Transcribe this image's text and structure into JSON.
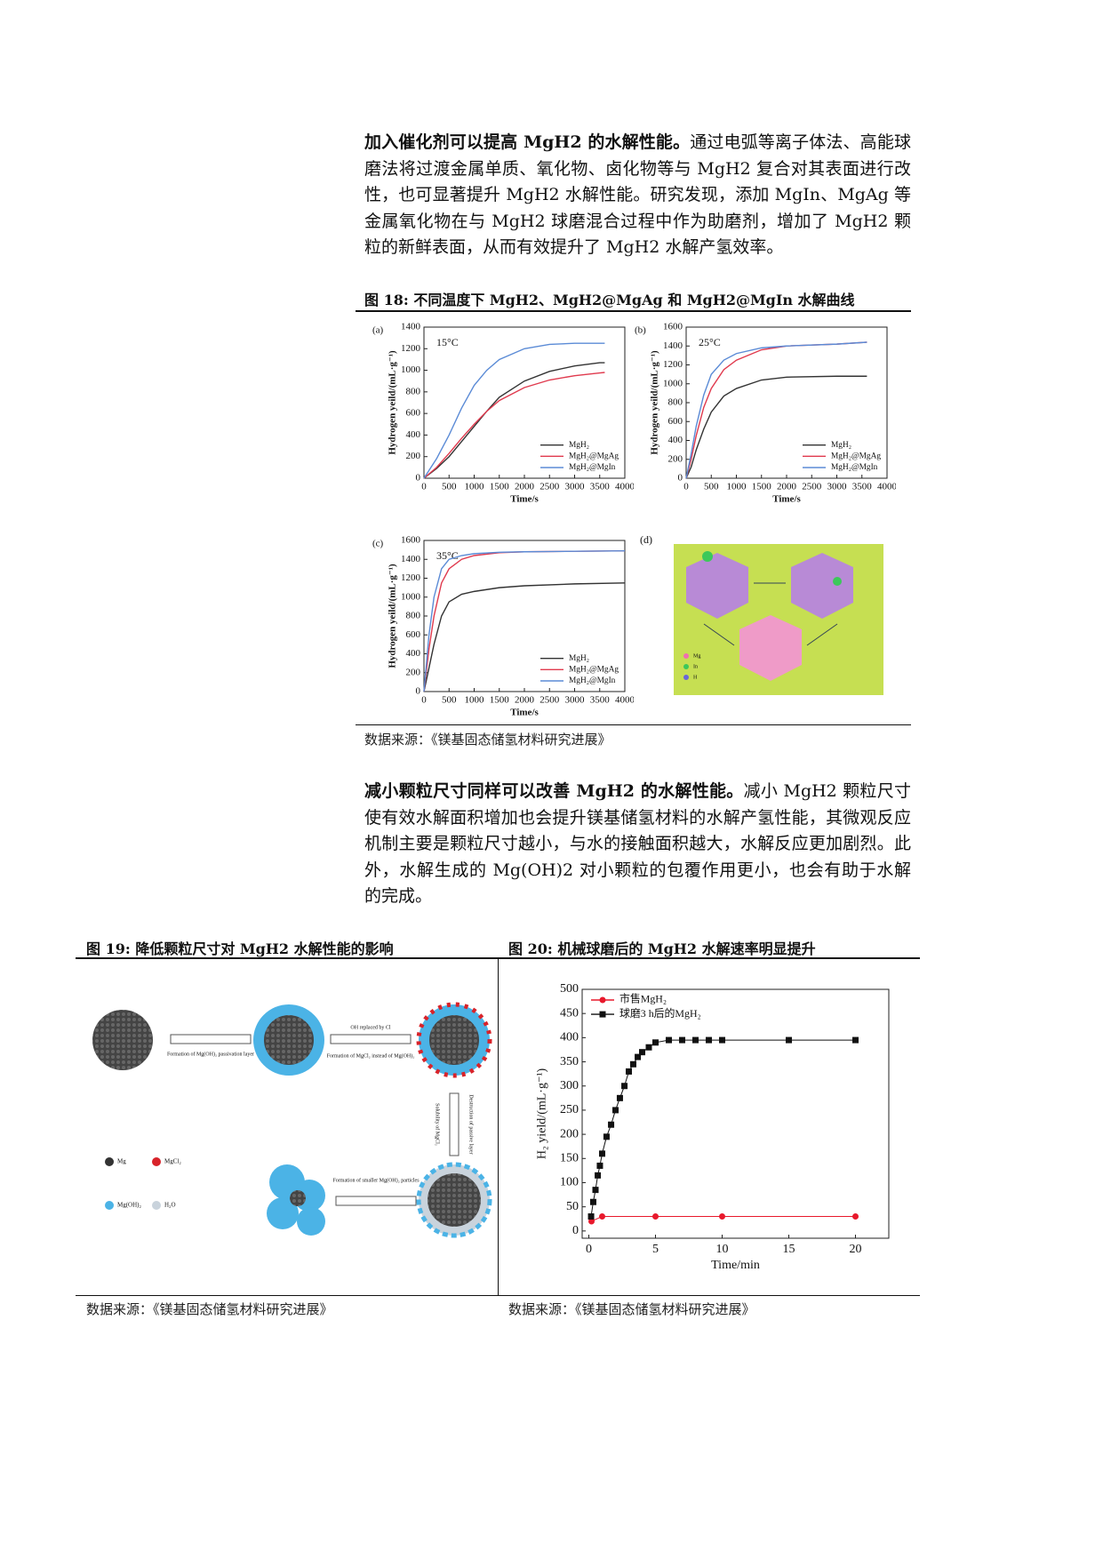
{
  "paragraphs": [
    {
      "lead": "加入催化剂可以提高 MgH2 的水解性能。",
      "text": "通过电弧等离子体法、高能球磨法将过渡金属单质、氧化物、卤化物等与 MgH2 复合对其表面进行改性，也可显著提升 MgH2 水解性能。研究发现，添加 MgIn、MgAg 等金属氧化物在与 MgH2 球磨混合过程中作为助磨剂，增加了 MgH2 颗粒的新鲜表面，从而有效提升了 MgH2 水解产氢效率。"
    },
    {
      "lead": "减小颗粒尺寸同样可以改善 MgH2 的水解性能。",
      "text": "减小 MgH2 颗粒尺寸使有效水解面积增加也会提升镁基储氢材料的水解产氢性能，其微观反应机制主要是颗粒尺寸越小，与水的接触面积越大，水解反应更加剧烈。此外，水解生成的 Mg(OH)2 对小颗粒的包覆作用更小，也会有助于水解的完成。"
    }
  ],
  "figure18": {
    "caption": "图 18: 不同温度下 MgH2、MgH2@MgAg 和 MgH2@MgIn 水解曲线",
    "panels": [
      {
        "type": "line",
        "label": "(a)",
        "annotation": "15°C",
        "x_label": "Time/s",
        "y_label": "Hydrogen yeild/(mL·g⁻¹)",
        "xlim": [
          0,
          4000
        ],
        "ylim": [
          0,
          1400
        ],
        "xticks": [
          0,
          500,
          1000,
          1500,
          2000,
          2500,
          3000,
          3500,
          4000
        ],
        "yticks": [
          0,
          200,
          400,
          600,
          800,
          1000,
          1200,
          1400
        ],
        "legend": "lower right",
        "series": [
          {
            "name": "MgH₂",
            "color": "#333333",
            "x": [
              0,
              250,
              500,
              750,
              1000,
              1250,
              1500,
              2000,
              2500,
              3000,
              3500,
              3600
            ],
            "values": [
              0,
              90,
              200,
              340,
              480,
              620,
              750,
              900,
              990,
              1040,
              1070,
              1070
            ]
          },
          {
            "name": "MgH₂@MgAg",
            "color": "#e03a4e",
            "x": [
              0,
              250,
              500,
              750,
              1000,
              1250,
              1500,
              2000,
              2500,
              3000,
              3500,
              3600
            ],
            "values": [
              0,
              100,
              230,
              370,
              500,
              620,
              720,
              840,
              910,
              950,
              975,
              980
            ]
          },
          {
            "name": "MgH₂@MgIn",
            "color": "#5b8bd6",
            "x": [
              0,
              250,
              500,
              750,
              1000,
              1250,
              1500,
              2000,
              2500,
              3000,
              3500,
              3600
            ],
            "values": [
              0,
              180,
              400,
              650,
              860,
              1000,
              1100,
              1200,
              1240,
              1250,
              1250,
              1250
            ]
          }
        ]
      },
      {
        "type": "line",
        "label": "(b)",
        "annotation": "25°C",
        "x_label": "Time/s",
        "y_label": "Hydrogen yeild/(mL·g⁻¹)",
        "xlim": [
          0,
          4000
        ],
        "ylim": [
          0,
          1600
        ],
        "xticks": [
          0,
          500,
          1000,
          1500,
          2000,
          2500,
          3000,
          3500,
          4000
        ],
        "yticks": [
          0,
          200,
          400,
          600,
          800,
          1000,
          1200,
          1400,
          1600
        ],
        "legend": "lower right",
        "series": [
          {
            "name": "MgH₂",
            "color": "#333333",
            "x": [
              0,
              100,
              200,
              350,
              500,
              750,
              1000,
              1500,
              2000,
              3000,
              3600
            ],
            "values": [
              0,
              120,
              300,
              520,
              700,
              870,
              950,
              1040,
              1070,
              1080,
              1080
            ]
          },
          {
            "name": "MgH₂@MgAg",
            "color": "#e03a4e",
            "x": [
              0,
              100,
              200,
              350,
              500,
              750,
              1000,
              1500,
              2000,
              3000,
              3600
            ],
            "values": [
              0,
              200,
              450,
              750,
              950,
              1150,
              1250,
              1360,
              1400,
              1420,
              1440
            ]
          },
          {
            "name": "MgH₂@MgIn",
            "color": "#5b8bd6",
            "x": [
              0,
              100,
              200,
              350,
              500,
              750,
              1000,
              1500,
              2000,
              3000,
              3600
            ],
            "values": [
              0,
              260,
              550,
              880,
              1100,
              1250,
              1320,
              1380,
              1400,
              1420,
              1440
            ]
          }
        ]
      },
      {
        "type": "line",
        "label": "(c)",
        "annotation": "35°C",
        "x_label": "Time/s",
        "y_label": "Hydrogen yeild/(mL·g⁻¹)",
        "xlim": [
          0,
          4000
        ],
        "ylim": [
          0,
          1600
        ],
        "xticks": [
          0,
          500,
          1000,
          1500,
          2000,
          2500,
          3000,
          3500,
          4000
        ],
        "yticks": [
          0,
          200,
          400,
          600,
          800,
          1000,
          1200,
          1400,
          1600
        ],
        "legend": "lower right",
        "series": [
          {
            "name": "MgH₂",
            "color": "#333333",
            "x": [
              0,
              100,
              200,
              350,
              500,
              750,
              1000,
              1500,
              2000,
              3000,
              4000
            ],
            "values": [
              0,
              250,
              500,
              800,
              950,
              1030,
              1060,
              1100,
              1120,
              1140,
              1150
            ]
          },
          {
            "name": "MgH₂@MgAg",
            "color": "#e03a4e",
            "x": [
              0,
              100,
              200,
              350,
              500,
              750,
              1000,
              1500,
              2000,
              3000,
              4000
            ],
            "values": [
              0,
              450,
              800,
              1150,
              1300,
              1400,
              1440,
              1470,
              1480,
              1485,
              1490
            ]
          },
          {
            "name": "MgH₂@MgIn",
            "color": "#5b8bd6",
            "x": [
              0,
              100,
              200,
              350,
              500,
              750,
              1000,
              1500,
              2000,
              3000,
              4000
            ],
            "values": [
              0,
              600,
              1000,
              1300,
              1400,
              1440,
              1460,
              1475,
              1480,
              1485,
              1490
            ]
          }
        ]
      }
    ],
    "diagram": {
      "label": "(d)",
      "legend": [
        "Mg",
        "In",
        "H"
      ]
    },
    "source": "数据来源：《镁基固态储氢材料研究进展》"
  },
  "figure19": {
    "caption": "图 19: 降低颗粒尺寸对 MgH2 水解性能的影响",
    "labels": [
      "Formation of Mg(OH)₂ passivation layer",
      "OH replaced by Cl",
      "Formation of MgCl₂ instead of Mg(OH)₂",
      "Solubility of MgCl₂",
      "Destruction of passive layer",
      "Formation of smaller Mg(OH)₂ particles"
    ],
    "legend": [
      "Mg",
      "MgCl₂",
      "Mg(OH)₂",
      "H₂O"
    ],
    "source": "数据来源：《镁基固态储氢材料研究进展》"
  },
  "figure20": {
    "caption": "图 20: 机械球磨后的 MgH2 水解速率明显提升",
    "chart": {
      "type": "line",
      "x_label": "Time/min",
      "y_label": "H₂ yield/(mL·g⁻¹)",
      "xlim": [
        -0.5,
        22.5
      ],
      "ylim": [
        -15,
        500
      ],
      "xticks": [
        0,
        5,
        10,
        15,
        20
      ],
      "yticks": [
        0,
        50,
        100,
        150,
        200,
        250,
        300,
        350,
        400,
        450,
        500
      ],
      "legend": "upper left",
      "series": [
        {
          "name": "市售MgH₂",
          "color": "#e8192c",
          "marker": "circle",
          "x": [
            0.2,
            1,
            5,
            10,
            20
          ],
          "values": [
            20,
            30,
            30,
            30,
            30
          ]
        },
        {
          "name": "球磨3 h后的MgH₂",
          "color": "#111111",
          "marker": "square",
          "x": [
            0.17,
            0.33,
            0.5,
            0.67,
            0.83,
            1,
            1.33,
            1.67,
            2,
            2.33,
            2.67,
            3,
            3.33,
            3.67,
            4,
            4.5,
            5,
            6,
            7,
            8,
            9,
            10,
            15,
            20
          ],
          "values": [
            30,
            60,
            85,
            115,
            135,
            160,
            195,
            220,
            250,
            275,
            300,
            330,
            345,
            360,
            370,
            380,
            390,
            395,
            395,
            395,
            395,
            395,
            395,
            395
          ]
        }
      ]
    },
    "source": "数据来源：《镁基固态储氢材料研究进展》"
  }
}
